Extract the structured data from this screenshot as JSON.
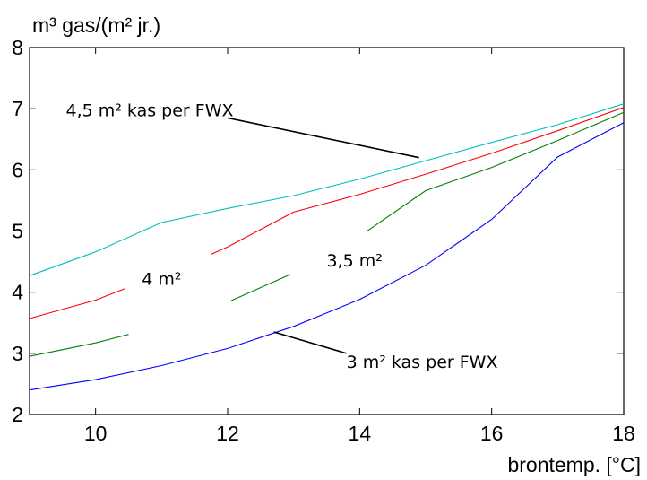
{
  "chart_data": {
    "type": "line",
    "title": "",
    "ylabel": "m³ gas/(m² jr.)",
    "xlabel": "brontemp. [°C]",
    "xlim": [
      9,
      18
    ],
    "ylim": [
      2,
      8
    ],
    "x_ticks": [
      10,
      12,
      14,
      16,
      18
    ],
    "y_ticks": [
      2,
      3,
      4,
      5,
      6,
      7,
      8
    ],
    "grid": false,
    "legend": "none",
    "series": [
      {
        "color": "#00bfbf",
        "segments": [
          [
            [
              9,
              4.27
            ],
            [
              10,
              4.66
            ],
            [
              11,
              5.14
            ],
            [
              12,
              5.37
            ],
            [
              13,
              5.58
            ],
            [
              14,
              5.85
            ],
            [
              15,
              6.15
            ],
            [
              16,
              6.45
            ],
            [
              17,
              6.74
            ],
            [
              18,
              7.08
            ]
          ]
        ]
      },
      {
        "color": "#ff0000",
        "segments": [
          [
            [
              9,
              3.57
            ],
            [
              10,
              3.87
            ],
            [
              10.45,
              4.06
            ]
          ],
          [
            [
              11.75,
              4.62
            ],
            [
              12,
              4.74
            ],
            [
              13,
              5.31
            ],
            [
              14,
              5.6
            ],
            [
              15,
              5.93
            ],
            [
              16,
              6.27
            ],
            [
              17,
              6.64
            ],
            [
              18,
              7.02
            ]
          ]
        ]
      },
      {
        "color": "#008000",
        "segments": [
          [
            [
              9,
              2.95
            ],
            [
              10,
              3.17
            ],
            [
              10.5,
              3.31
            ]
          ],
          [
            [
              12.05,
              3.86
            ],
            [
              12.95,
              4.29
            ]
          ],
          [
            [
              14.1,
              4.99
            ],
            [
              15,
              5.66
            ],
            [
              16,
              6.04
            ],
            [
              17,
              6.48
            ],
            [
              18,
              6.94
            ]
          ]
        ]
      },
      {
        "color": "#0000ff",
        "segments": [
          [
            [
              9,
              2.4
            ],
            [
              10,
              2.57
            ],
            [
              11,
              2.8
            ],
            [
              12,
              3.08
            ],
            [
              13,
              3.44
            ],
            [
              14,
              3.88
            ],
            [
              15,
              4.44
            ],
            [
              16,
              5.19
            ],
            [
              17,
              6.21
            ],
            [
              18,
              6.77
            ]
          ]
        ]
      }
    ],
    "annotations": [
      {
        "text": "4,5 m² kas per FWX",
        "x": 9.55,
        "y": 6.88,
        "pointer_from": [
          12.0,
          6.85
        ],
        "pointer_to": [
          14.9,
          6.2
        ]
      },
      {
        "text": "4 m²",
        "x": 10.7,
        "y": 4.12
      },
      {
        "text": "3,5 m²",
        "x": 13.5,
        "y": 4.42
      },
      {
        "text": "3 m² kas per FWX",
        "x": 13.8,
        "y": 2.76,
        "pointer_from": [
          13.8,
          3.0
        ],
        "pointer_to": [
          12.7,
          3.35
        ]
      }
    ]
  }
}
